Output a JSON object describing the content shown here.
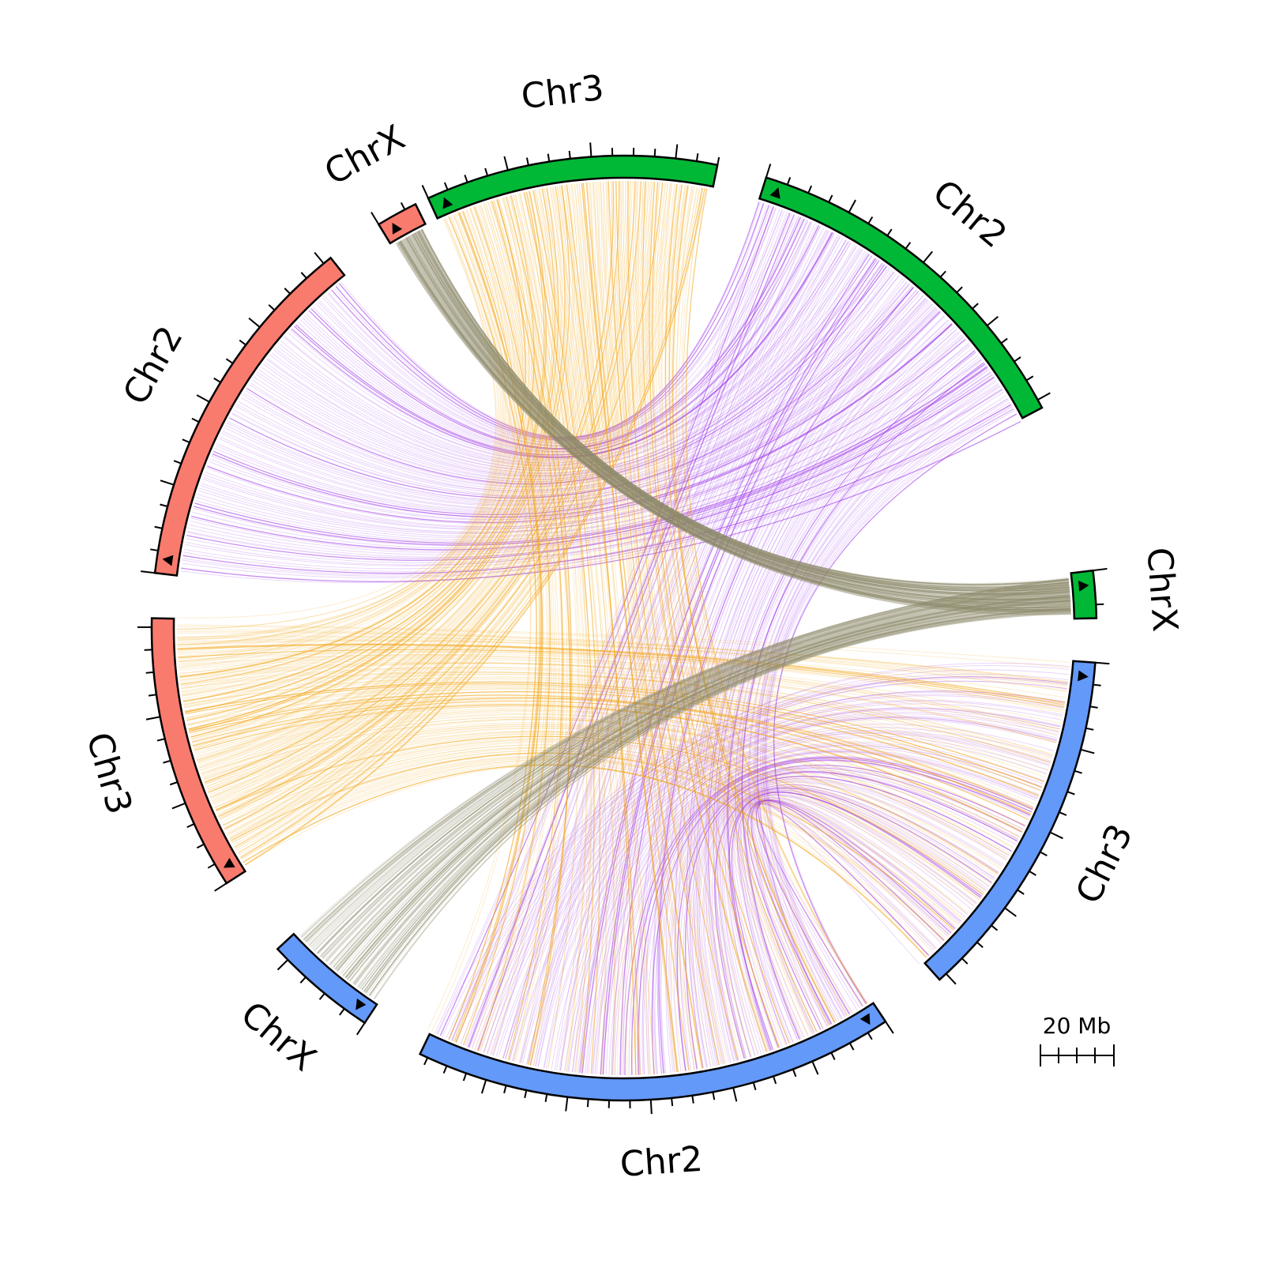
{
  "diagram": {
    "type": "synteny-circos",
    "colors": {
      "genome_red": "#f87b6e",
      "genome_green": "#00b835",
      "genome_blue": "#6399f8",
      "link_purple": "#9b30e8",
      "link_orange": "#f2a20f",
      "link_gray": "#8c8a6b"
    },
    "segments": [
      {
        "id": "red-chrX",
        "label": "ChrX",
        "genome": "red",
        "color": "#f87b6e",
        "length_mb": 7
      },
      {
        "id": "green-chr3",
        "label": "Chr3",
        "genome": "green",
        "color": "#00b835",
        "length_mb": 70
      },
      {
        "id": "green-chr2",
        "label": "Chr2",
        "genome": "green",
        "color": "#00b835",
        "length_mb": 82
      },
      {
        "id": "green-chrX",
        "label": "ChrX",
        "genome": "green",
        "color": "#00b835",
        "length_mb": 7
      },
      {
        "id": "blue-chr3",
        "label": "Chr3",
        "genome": "blue",
        "color": "#6399f8",
        "length_mb": 82
      },
      {
        "id": "blue-chr2",
        "label": "Chr2",
        "genome": "blue",
        "color": "#6399f8",
        "length_mb": 117
      },
      {
        "id": "blue-chrX",
        "label": "ChrX",
        "genome": "blue",
        "color": "#6399f8",
        "length_mb": 23
      },
      {
        "id": "red-chr3",
        "label": "Chr3",
        "genome": "red",
        "color": "#f87b6e",
        "length_mb": 62
      },
      {
        "id": "red-chr2",
        "label": "Chr2",
        "genome": "red",
        "color": "#f87b6e",
        "length_mb": 82
      }
    ],
    "links": [
      {
        "from": "red-chr2",
        "to": "green-chr2",
        "color": "#9b30e8"
      },
      {
        "from": "green-chr2",
        "to": "blue-chr2",
        "color": "#9b30e8"
      },
      {
        "from": "blue-chr2",
        "to": "blue-chr3",
        "color": "#9b30e8"
      },
      {
        "from": "green-chr3",
        "to": "red-chr3",
        "color": "#f2a20f"
      },
      {
        "from": "green-chr3",
        "to": "blue-chr2",
        "color": "#f2a20f"
      },
      {
        "from": "red-chr3",
        "to": "blue-chr3",
        "color": "#f2a20f"
      },
      {
        "from": "red-chrX",
        "to": "green-chrX",
        "color": "#8c8a6b"
      },
      {
        "from": "green-chrX",
        "to": "blue-chrX",
        "color": "#8c8a6b"
      }
    ],
    "scale_bar": {
      "label": "20 Mb",
      "length_mb": 20,
      "ticks": 4
    }
  }
}
